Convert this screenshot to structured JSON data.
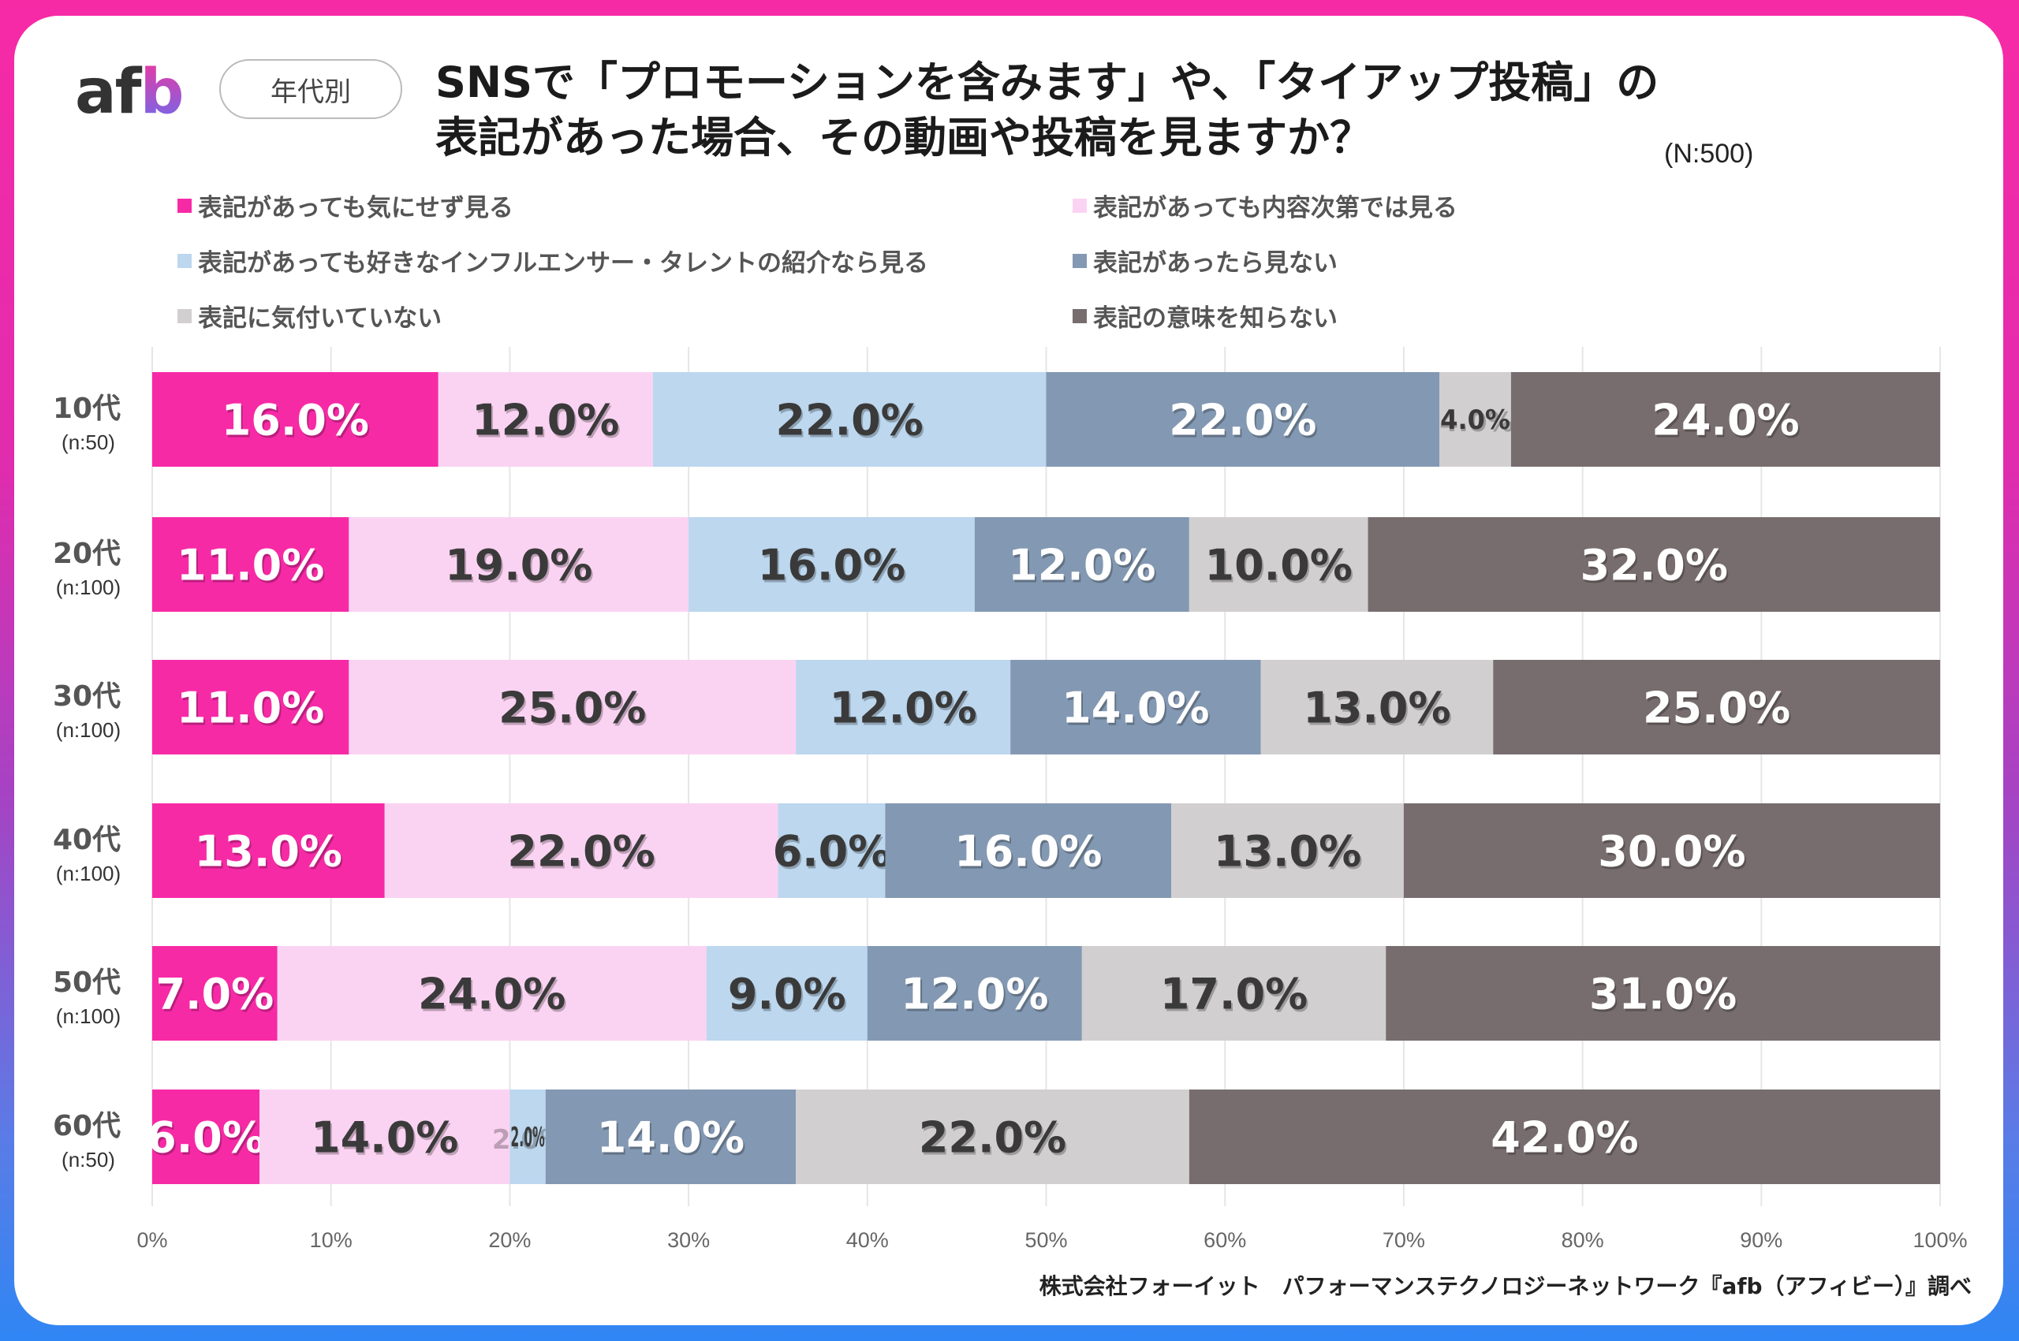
{
  "logo": {
    "text_a": "af",
    "text_b": "b"
  },
  "badge": "年代別",
  "title": {
    "line1": "SNSで「プロモーションを含みます」や、「タイアップ投稿」の",
    "line2": "表記があった場合、その動画や投稿を見ますか？"
  },
  "sample_size": "(N:500)",
  "footer": "株式会社フォーイット　パフォーマンステクノロジーネットワーク『afb（アフィビー）』調べ",
  "chart_data": {
    "type": "bar",
    "orientation": "horizontal",
    "stacked": "percent",
    "title": "SNSで「プロモーションを含みます」や、「タイアップ投稿」の表記があった場合、その動画や投稿を見ますか？",
    "categories": [
      "10代",
      "20代",
      "30代",
      "40代",
      "50代",
      "60代"
    ],
    "category_sublabels": [
      "(n:50)",
      "(n:100)",
      "(n:100)",
      "(n:100)",
      "(n:100)",
      "(n:50)"
    ],
    "xlim": [
      0,
      100
    ],
    "xticks": [
      "0%",
      "10%",
      "20%",
      "30%",
      "40%",
      "50%",
      "60%",
      "70%",
      "80%",
      "90%",
      "100%"
    ],
    "grid": true,
    "legend_position": "top",
    "series": [
      {
        "name": "表記があっても気にせず見る",
        "color": "#f72aa6",
        "label_color": "#ffffff",
        "values": [
          16.0,
          11.0,
          11.0,
          13.0,
          7.0,
          6.0
        ]
      },
      {
        "name": "表記があっても内容次第では見る",
        "color": "#fbd3f2",
        "label_color": "#3a3a3a",
        "values": [
          12.0,
          19.0,
          25.0,
          22.0,
          24.0,
          14.0
        ]
      },
      {
        "name": "表記があっても好きなインフルエンサー・タレントの紹介なら見る",
        "color": "#bcd7ee",
        "label_color": "#3a3a3a",
        "values": [
          22.0,
          16.0,
          12.0,
          6.0,
          9.0,
          2.0
        ]
      },
      {
        "name": "表記があったら見ない",
        "color": "#8398b2",
        "label_color": "#ffffff",
        "values": [
          22.0,
          12.0,
          14.0,
          16.0,
          12.0,
          14.0
        ]
      },
      {
        "name": "表記に気付いていない",
        "color": "#d2cfd0",
        "label_color": "#3a3a3a",
        "values": [
          4.0,
          10.0,
          13.0,
          13.0,
          17.0,
          22.0
        ]
      },
      {
        "name": "表記の意味を知らない",
        "color": "#776d6e",
        "label_color": "#ffffff",
        "values": [
          24.0,
          32.0,
          25.0,
          30.0,
          31.0,
          42.0
        ]
      }
    ]
  }
}
